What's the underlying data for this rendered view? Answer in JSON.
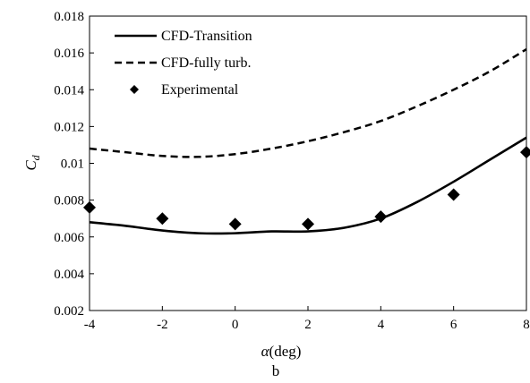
{
  "chart_data": {
    "type": "line",
    "xlabel_symbol": "α",
    "xlabel_unit": "(deg)",
    "ylabel_main": "C",
    "ylabel_sub": "d",
    "caption": "b",
    "xlim": [
      -4,
      8
    ],
    "ylim": [
      0.002,
      0.018
    ],
    "x_ticks": [
      -4,
      -2,
      0,
      2,
      4,
      6,
      8
    ],
    "y_ticks": [
      0.002,
      0.004,
      0.006,
      0.008,
      0.01,
      0.012,
      0.014,
      0.016,
      0.018
    ],
    "y_tick_labels": [
      "0.002",
      "0.004",
      "0.006",
      "0.008",
      "0.01",
      "0.012",
      "0.014",
      "0.016",
      "0.018"
    ],
    "grid": false,
    "legend_position": "top-left",
    "series": [
      {
        "name": "CFD-Transition",
        "style": "solid",
        "x": [
          -4,
          -3,
          -2,
          -1,
          0,
          1,
          2,
          3,
          4,
          5,
          6,
          7,
          8
        ],
        "y": [
          0.0068,
          0.0066,
          0.00635,
          0.0062,
          0.0062,
          0.0063,
          0.0063,
          0.0065,
          0.007,
          0.0079,
          0.009,
          0.0102,
          0.0114
        ]
      },
      {
        "name": "CFD-fully turb.",
        "style": "dashed",
        "x": [
          -4,
          -3,
          -2,
          -1,
          0,
          1,
          2,
          3,
          4,
          5,
          6,
          7,
          8
        ],
        "y": [
          0.0108,
          0.0106,
          0.0104,
          0.01035,
          0.0105,
          0.0108,
          0.0112,
          0.0117,
          0.0123,
          0.0131,
          0.014,
          0.015,
          0.0162
        ]
      },
      {
        "name": "Experimental",
        "style": "markers",
        "marker": "diamond",
        "x": [
          -4,
          -2,
          0,
          2,
          4,
          6,
          8
        ],
        "y": [
          0.0076,
          0.007,
          0.0067,
          0.0067,
          0.0071,
          0.0083,
          0.0106
        ]
      }
    ]
  }
}
